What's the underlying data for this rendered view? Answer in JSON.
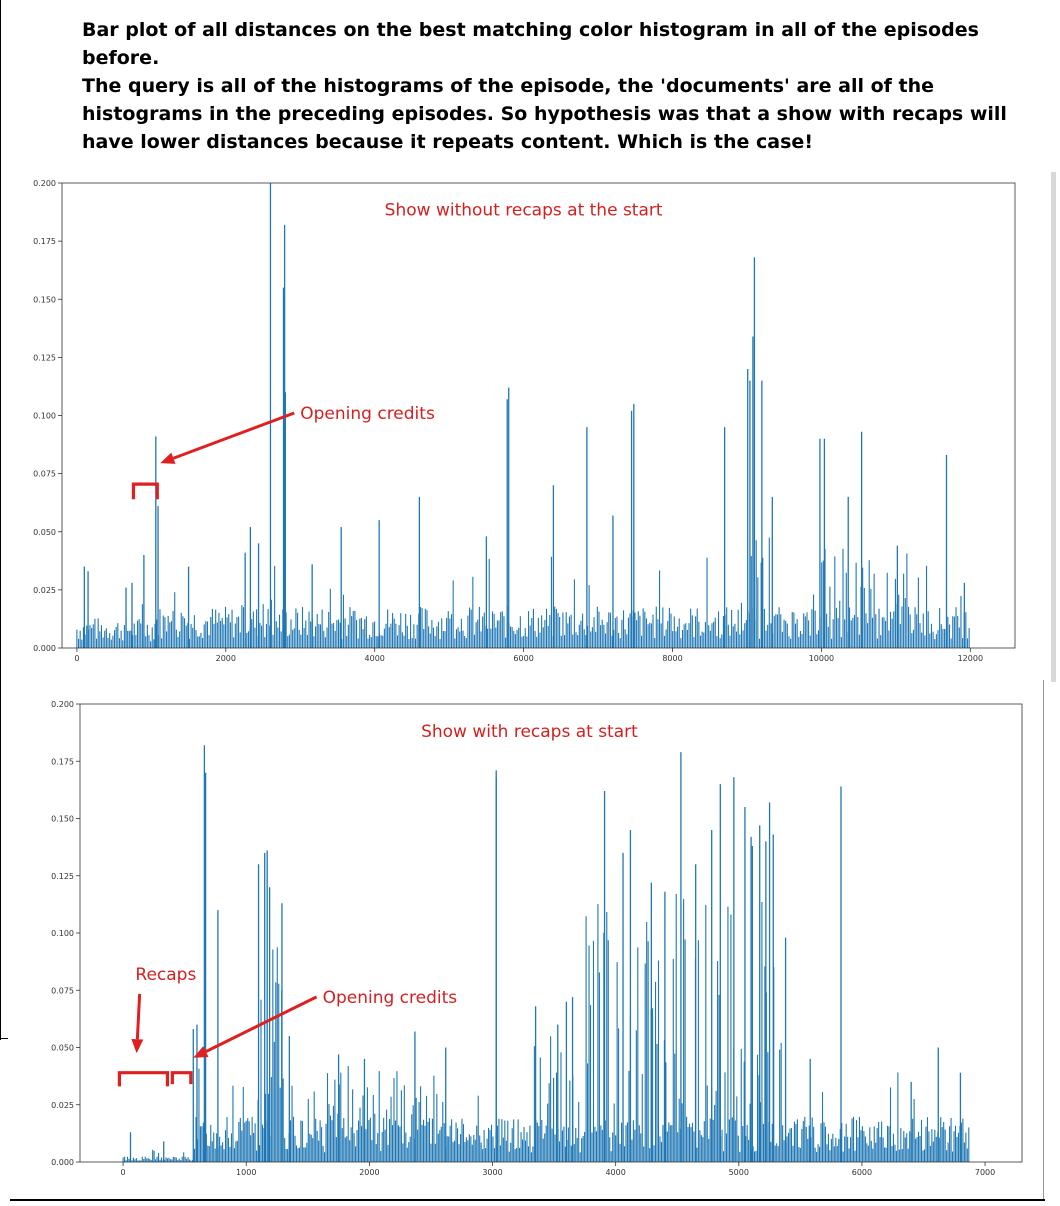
{
  "captions": {
    "line1": "Bar plot of all distances on the best matching color histogram in all of the episodes before.",
    "line2": "The query is all of the histograms of the episode, the 'documents' are all of the histograms in the preceding episodes. So hypothesis was that a show with recaps will have lower distances because it repeats content. Which is the case!"
  },
  "colors": {
    "bar": "#1f77b4",
    "annotation": "#e02020",
    "axis": "#333333"
  },
  "chart_data": [
    {
      "type": "bar",
      "title": "",
      "xlabel": "",
      "ylabel": "",
      "xlim": [
        -200,
        12600
      ],
      "ylim": [
        0,
        0.2
      ],
      "xticks": [
        0,
        2000,
        4000,
        6000,
        8000,
        10000,
        12000
      ],
      "xtick_labels": [
        "0",
        "2000",
        "4000",
        "6000",
        "8000",
        "10000",
        "12000"
      ],
      "yticks": [
        0,
        0.025,
        0.05,
        0.075,
        0.1,
        0.125,
        0.15,
        0.175,
        0.2
      ],
      "ytick_labels": [
        "0.000",
        "0.025",
        "0.050",
        "0.075",
        "0.100",
        "0.125",
        "0.150",
        "0.175",
        "0.200"
      ],
      "grid": false,
      "baseline": {
        "segments": [
          {
            "x": [
              0,
              1050
            ],
            "level": 0.008
          },
          {
            "x": [
              1050,
              12000
            ],
            "level": 0.011
          }
        ]
      },
      "peaks": [
        {
          "x": 100,
          "y": 0.035
        },
        {
          "x": 150,
          "y": 0.033
        },
        {
          "x": 660,
          "y": 0.026
        },
        {
          "x": 740,
          "y": 0.028
        },
        {
          "x": 900,
          "y": 0.04
        },
        {
          "x": 1060,
          "y": 0.091
        },
        {
          "x": 1090,
          "y": 0.061
        },
        {
          "x": 1500,
          "y": 0.035
        },
        {
          "x": 2260,
          "y": 0.041
        },
        {
          "x": 2330,
          "y": 0.052
        },
        {
          "x": 2440,
          "y": 0.045
        },
        {
          "x": 2600,
          "y": 0.205
        },
        {
          "x": 2775,
          "y": 0.155
        },
        {
          "x": 2790,
          "y": 0.182
        },
        {
          "x": 2800,
          "y": 0.11
        },
        {
          "x": 3160,
          "y": 0.036
        },
        {
          "x": 3550,
          "y": 0.052
        },
        {
          "x": 4060,
          "y": 0.055
        },
        {
          "x": 4600,
          "y": 0.065
        },
        {
          "x": 5500,
          "y": 0.048
        },
        {
          "x": 5780,
          "y": 0.107
        },
        {
          "x": 5800,
          "y": 0.112
        },
        {
          "x": 6400,
          "y": 0.07
        },
        {
          "x": 6850,
          "y": 0.095
        },
        {
          "x": 7200,
          "y": 0.057
        },
        {
          "x": 7450,
          "y": 0.102
        },
        {
          "x": 7480,
          "y": 0.105
        },
        {
          "x": 8700,
          "y": 0.095
        },
        {
          "x": 9010,
          "y": 0.12
        },
        {
          "x": 9040,
          "y": 0.115
        },
        {
          "x": 9080,
          "y": 0.134
        },
        {
          "x": 9100,
          "y": 0.168
        },
        {
          "x": 9200,
          "y": 0.115
        },
        {
          "x": 9340,
          "y": 0.065
        },
        {
          "x": 9980,
          "y": 0.09
        },
        {
          "x": 10040,
          "y": 0.09
        },
        {
          "x": 10360,
          "y": 0.065
        },
        {
          "x": 10540,
          "y": 0.093
        },
        {
          "x": 11020,
          "y": 0.044
        },
        {
          "x": 11680,
          "y": 0.083
        },
        {
          "x": 11920,
          "y": 0.028
        }
      ],
      "dense_regions": [
        {
          "x": [
            9000,
            9400
          ],
          "max": 0.05
        },
        {
          "x": [
            9900,
            11200
          ],
          "max": 0.045
        }
      ],
      "annotations": [
        {
          "text": "Show without recaps at the start",
          "data_x": 6000,
          "data_y": 0.186
        },
        {
          "text": "Opening credits",
          "data_x": 3000,
          "data_y": 0.0985,
          "arrow_to": [
            1120,
            0.0795
          ]
        }
      ],
      "brackets": [
        {
          "x": [
            760,
            1080
          ],
          "y_top": 0.0705,
          "y_bottom": 0.064
        }
      ]
    },
    {
      "type": "bar",
      "title": "",
      "xlabel": "",
      "ylabel": "",
      "xlim": [
        -350,
        7300
      ],
      "ylim": [
        0,
        0.2
      ],
      "xticks": [
        0,
        1000,
        2000,
        3000,
        4000,
        5000,
        6000,
        7000
      ],
      "xtick_labels": [
        "0",
        "1000",
        "2000",
        "3000",
        "4000",
        "5000",
        "6000",
        "7000"
      ],
      "yticks": [
        0,
        0.025,
        0.05,
        0.075,
        0.1,
        0.125,
        0.15,
        0.175,
        0.2
      ],
      "ytick_labels": [
        "0.000",
        "0.025",
        "0.050",
        "0.075",
        "0.100",
        "0.125",
        "0.150",
        "0.175",
        "0.200"
      ],
      "grid": false,
      "baseline": {
        "segments": [
          {
            "x": [
              0,
              580
            ],
            "level": 0.0015
          },
          {
            "x": [
              580,
              6880
            ],
            "level": 0.012
          }
        ]
      },
      "peaks": [
        {
          "x": 60,
          "y": 0.013
        },
        {
          "x": 330,
          "y": 0.009
        },
        {
          "x": 570,
          "y": 0.058
        },
        {
          "x": 600,
          "y": 0.06
        },
        {
          "x": 660,
          "y": 0.182
        },
        {
          "x": 670,
          "y": 0.17
        },
        {
          "x": 770,
          "y": 0.11
        },
        {
          "x": 1100,
          "y": 0.13
        },
        {
          "x": 1150,
          "y": 0.135
        },
        {
          "x": 1170,
          "y": 0.136
        },
        {
          "x": 1190,
          "y": 0.12
        },
        {
          "x": 1290,
          "y": 0.113
        },
        {
          "x": 1350,
          "y": 0.055
        },
        {
          "x": 1750,
          "y": 0.047
        },
        {
          "x": 1960,
          "y": 0.045
        },
        {
          "x": 2370,
          "y": 0.057
        },
        {
          "x": 2620,
          "y": 0.05
        },
        {
          "x": 3030,
          "y": 0.171
        },
        {
          "x": 3030,
          "y": 0.168
        },
        {
          "x": 3350,
          "y": 0.068
        },
        {
          "x": 3530,
          "y": 0.06
        },
        {
          "x": 3600,
          "y": 0.07
        },
        {
          "x": 3650,
          "y": 0.072
        },
        {
          "x": 3910,
          "y": 0.162
        },
        {
          "x": 4060,
          "y": 0.135
        },
        {
          "x": 4120,
          "y": 0.145
        },
        {
          "x": 4290,
          "y": 0.122
        },
        {
          "x": 4400,
          "y": 0.118
        },
        {
          "x": 4530,
          "y": 0.179
        },
        {
          "x": 4650,
          "y": 0.13
        },
        {
          "x": 4780,
          "y": 0.145
        },
        {
          "x": 4850,
          "y": 0.165
        },
        {
          "x": 4960,
          "y": 0.168
        },
        {
          "x": 5050,
          "y": 0.155
        },
        {
          "x": 5100,
          "y": 0.142
        },
        {
          "x": 5110,
          "y": 0.138
        },
        {
          "x": 5170,
          "y": 0.147
        },
        {
          "x": 5220,
          "y": 0.14
        },
        {
          "x": 5250,
          "y": 0.157
        },
        {
          "x": 5280,
          "y": 0.143
        },
        {
          "x": 5380,
          "y": 0.098
        },
        {
          "x": 5580,
          "y": 0.045
        },
        {
          "x": 5830,
          "y": 0.164
        },
        {
          "x": 6400,
          "y": 0.035
        },
        {
          "x": 6620,
          "y": 0.05
        },
        {
          "x": 6800,
          "y": 0.039
        }
      ],
      "dense_regions": [
        {
          "x": [
            1050,
            1300
          ],
          "max": 0.095
        },
        {
          "x": [
            1450,
            2600
          ],
          "max": 0.04
        },
        {
          "x": [
            3300,
            3700
          ],
          "max": 0.055
        },
        {
          "x": [
            3750,
            5350
          ],
          "max": 0.12
        }
      ],
      "annotations": [
        {
          "text": "Show with recaps at start",
          "data_x": 3300,
          "data_y": 0.1855
        },
        {
          "text": "Recaps",
          "data_x": 100,
          "data_y": 0.0795,
          "arrow_to": [
            110,
            0.0475
          ]
        },
        {
          "text": "Opening credits",
          "data_x": 1620,
          "data_y": 0.0695,
          "arrow_to": [
            570,
            0.0455
          ]
        }
      ],
      "brackets": [
        {
          "x": [
            -30,
            360
          ],
          "y_top": 0.039,
          "y_bottom": 0.033
        },
        {
          "x": [
            400,
            550
          ],
          "y_top": 0.039,
          "y_bottom": 0.034
        }
      ]
    }
  ]
}
